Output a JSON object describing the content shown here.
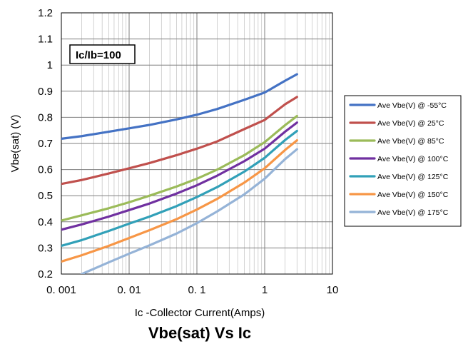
{
  "chart_data": {
    "type": "line",
    "title": "Vbe(sat) Vs Ic",
    "xlabel": "Ic -Collector Current(Amps)",
    "ylabel": "Vbe(sat) (V)",
    "x_scale": "log",
    "xlim": [
      0.001,
      10
    ],
    "ylim": [
      0.2,
      1.2
    ],
    "x_tick_values": [
      0.001,
      0.01,
      0.1,
      1,
      10
    ],
    "x_tick_labels": [
      "0. 001",
      "0. 01",
      "0. 1",
      "1",
      "10"
    ],
    "y_tick_values": [
      0.2,
      0.3,
      0.4,
      0.5,
      0.6,
      0.7,
      0.8,
      0.9,
      1,
      1.1,
      1.2
    ],
    "y_tick_labels": [
      "0.2",
      "0.3",
      "0.4",
      "0.5",
      "0.6",
      "0.7",
      "0.8",
      "0.9",
      "1",
      "1.1",
      "1.2"
    ],
    "grid": true,
    "legend_position": "right",
    "annotation": "Ic/Ib=100",
    "series": [
      {
        "name": "Ave Vbe(V) @ -55°C",
        "color": "#4472C4",
        "points": [
          [
            0.001,
            0.718
          ],
          [
            0.002,
            0.728
          ],
          [
            0.005,
            0.745
          ],
          [
            0.01,
            0.758
          ],
          [
            0.02,
            0.771
          ],
          [
            0.05,
            0.792
          ],
          [
            0.1,
            0.81
          ],
          [
            0.2,
            0.832
          ],
          [
            0.5,
            0.867
          ],
          [
            1,
            0.895
          ],
          [
            2,
            0.94
          ],
          [
            3,
            0.965
          ]
        ]
      },
      {
        "name": "Ave Vbe(V) @ 25°C",
        "color": "#C0504D",
        "points": [
          [
            0.001,
            0.545
          ],
          [
            0.002,
            0.56
          ],
          [
            0.005,
            0.585
          ],
          [
            0.01,
            0.605
          ],
          [
            0.02,
            0.625
          ],
          [
            0.05,
            0.655
          ],
          [
            0.1,
            0.68
          ],
          [
            0.2,
            0.708
          ],
          [
            0.5,
            0.755
          ],
          [
            1,
            0.79
          ],
          [
            2,
            0.85
          ],
          [
            3,
            0.878
          ]
        ]
      },
      {
        "name": "Ave Vbe(V) @ 85°C",
        "color": "#9BBB59",
        "points": [
          [
            0.001,
            0.405
          ],
          [
            0.002,
            0.425
          ],
          [
            0.005,
            0.452
          ],
          [
            0.01,
            0.475
          ],
          [
            0.02,
            0.5
          ],
          [
            0.05,
            0.535
          ],
          [
            0.1,
            0.565
          ],
          [
            0.2,
            0.6
          ],
          [
            0.5,
            0.655
          ],
          [
            1,
            0.705
          ],
          [
            2,
            0.77
          ],
          [
            3,
            0.805
          ]
        ]
      },
      {
        "name": "Ave Vbe(V) @ 100°C",
        "color": "#7030A0",
        "points": [
          [
            0.001,
            0.37
          ],
          [
            0.002,
            0.39
          ],
          [
            0.005,
            0.42
          ],
          [
            0.01,
            0.445
          ],
          [
            0.02,
            0.47
          ],
          [
            0.05,
            0.508
          ],
          [
            0.1,
            0.54
          ],
          [
            0.2,
            0.577
          ],
          [
            0.5,
            0.632
          ],
          [
            1,
            0.68
          ],
          [
            2,
            0.745
          ],
          [
            3,
            0.78
          ]
        ]
      },
      {
        "name": "Ave Vbe(V) @ 125°C",
        "color": "#31A0B8",
        "points": [
          [
            0.001,
            0.308
          ],
          [
            0.002,
            0.33
          ],
          [
            0.005,
            0.365
          ],
          [
            0.01,
            0.393
          ],
          [
            0.02,
            0.42
          ],
          [
            0.05,
            0.46
          ],
          [
            0.1,
            0.495
          ],
          [
            0.2,
            0.533
          ],
          [
            0.5,
            0.592
          ],
          [
            1,
            0.645
          ],
          [
            2,
            0.713
          ],
          [
            3,
            0.748
          ]
        ]
      },
      {
        "name": "Ave Vbe(V) @ 150°C",
        "color": "#F79646",
        "points": [
          [
            0.001,
            0.248
          ],
          [
            0.002,
            0.272
          ],
          [
            0.005,
            0.308
          ],
          [
            0.01,
            0.338
          ],
          [
            0.02,
            0.368
          ],
          [
            0.05,
            0.41
          ],
          [
            0.1,
            0.447
          ],
          [
            0.2,
            0.488
          ],
          [
            0.5,
            0.55
          ],
          [
            1,
            0.605
          ],
          [
            2,
            0.675
          ],
          [
            3,
            0.712
          ]
        ]
      },
      {
        "name": "Ave Vbe(V) @ 175°C",
        "color": "#95B3D7",
        "points": [
          [
            0.002,
            0.2
          ],
          [
            0.005,
            0.245
          ],
          [
            0.01,
            0.278
          ],
          [
            0.02,
            0.31
          ],
          [
            0.05,
            0.355
          ],
          [
            0.1,
            0.395
          ],
          [
            0.2,
            0.44
          ],
          [
            0.5,
            0.505
          ],
          [
            1,
            0.565
          ],
          [
            2,
            0.64
          ],
          [
            3,
            0.678
          ]
        ]
      }
    ]
  }
}
